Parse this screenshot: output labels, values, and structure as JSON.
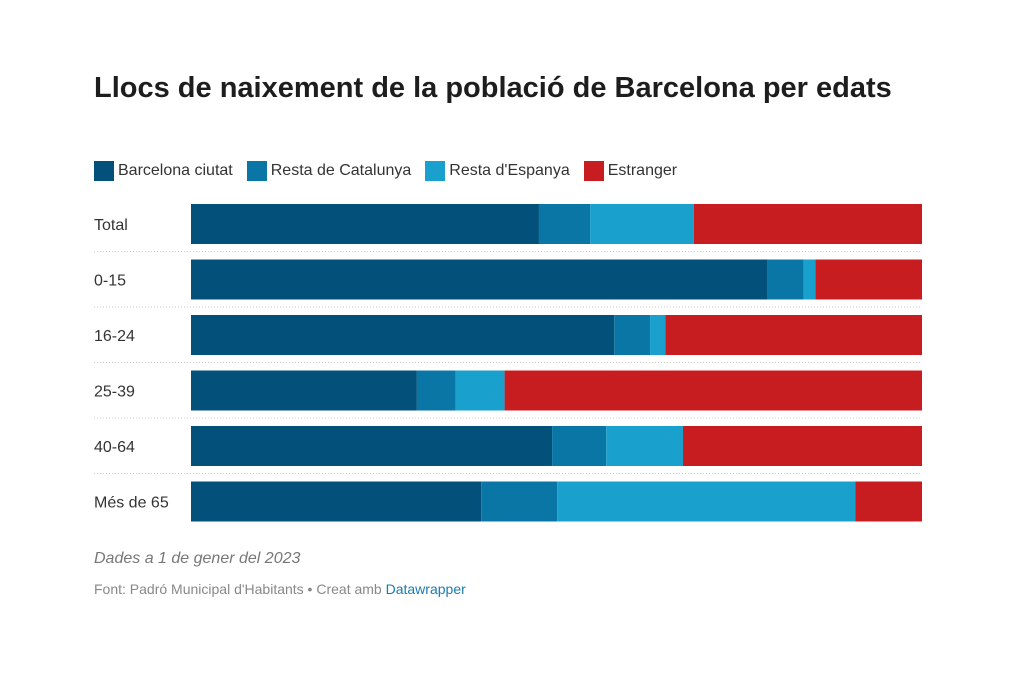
{
  "title": "Llocs de naixement de la població de Barcelona per edats",
  "chart_data": {
    "type": "bar",
    "orientation": "horizontal",
    "stacked": true,
    "normalized_percent": true,
    "categories": [
      "Total",
      "0-15",
      "16-24",
      "25-39",
      "40-64",
      "Més de 65"
    ],
    "series": [
      {
        "name": "Barcelona ciutat",
        "color": "#03517a",
        "values": [
          47.6,
          78.9,
          57.9,
          30.9,
          49.4,
          39.7
        ]
      },
      {
        "name": "Resta de Catalunya",
        "color": "#0a76a6",
        "values": [
          7.0,
          4.9,
          4.9,
          5.3,
          7.4,
          10.4
        ]
      },
      {
        "name": "Resta d'Espanya",
        "color": "#1aa0cc",
        "values": [
          14.2,
          1.6,
          2.1,
          6.7,
          10.5,
          40.8
        ]
      },
      {
        "name": "Estranger",
        "color": "#c81d20",
        "values": [
          31.2,
          14.6,
          35.1,
          57.1,
          32.7,
          9.1
        ]
      }
    ],
    "xlim": [
      0,
      100
    ],
    "legend": "top",
    "grid": false
  },
  "note": "Dades a 1 de gener del 2023",
  "source": {
    "prefix": "Font: Padró Municipal d'Habitants • Creat amb ",
    "link": "Datawrapper"
  }
}
